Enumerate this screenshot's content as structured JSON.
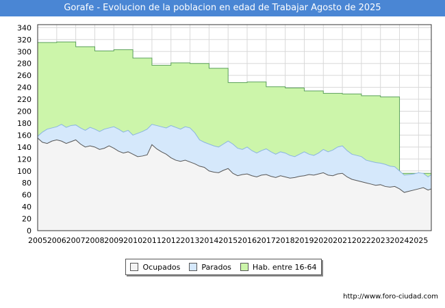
{
  "chart_data": {
    "type": "area",
    "title": "Gorafe - Evolucion de la poblacion en edad de Trabajar Agosto de 2025",
    "xlabel": "",
    "ylabel": "",
    "x_ticks": [
      "2005",
      "2006",
      "2007",
      "2008",
      "2009",
      "2010",
      "2011",
      "2012",
      "2013",
      "2014",
      "2015",
      "2016",
      "2017",
      "2018",
      "2019",
      "2020",
      "2021",
      "2022",
      "2023",
      "2024",
      "2025"
    ],
    "y_ticks": [
      0,
      20,
      40,
      60,
      80,
      100,
      120,
      140,
      160,
      180,
      200,
      220,
      240,
      260,
      280,
      300,
      320,
      340
    ],
    "xlim": [
      2005.0,
      2025.67
    ],
    "ylim": [
      0,
      345
    ],
    "grid": true,
    "legend_position": "bottom-center",
    "source": "http://www.foro-ciudad.com",
    "series": [
      {
        "name": "Hab. entre 16-64",
        "color": "#ccf5aa",
        "line_color": "#5aa05a",
        "step": true,
        "points": [
          [
            2005.0,
            315
          ],
          [
            2006.0,
            316
          ],
          [
            2007.0,
            308
          ],
          [
            2008.0,
            301
          ],
          [
            2009.0,
            303
          ],
          [
            2010.0,
            289
          ],
          [
            2011.0,
            277
          ],
          [
            2012.0,
            281
          ],
          [
            2013.0,
            280
          ],
          [
            2014.0,
            272
          ],
          [
            2015.0,
            248
          ],
          [
            2016.0,
            249
          ],
          [
            2017.0,
            241
          ],
          [
            2018.0,
            239
          ],
          [
            2019.0,
            234
          ],
          [
            2020.0,
            230
          ],
          [
            2021.0,
            229
          ],
          [
            2022.0,
            226
          ],
          [
            2023.0,
            224
          ],
          [
            2023.9,
            224
          ],
          [
            2024.0,
            96
          ],
          [
            2025.67,
            96
          ]
        ]
      },
      {
        "name": "Parados",
        "color": "#d5e8fb",
        "line_color": "#8ab4e0",
        "points": [
          [
            2005.0,
            158
          ],
          [
            2005.25,
            165
          ],
          [
            2005.5,
            170
          ],
          [
            2005.75,
            172
          ],
          [
            2006.0,
            174
          ],
          [
            2006.25,
            178
          ],
          [
            2006.5,
            173
          ],
          [
            2006.75,
            176
          ],
          [
            2007.0,
            177
          ],
          [
            2007.25,
            172
          ],
          [
            2007.5,
            168
          ],
          [
            2007.75,
            173
          ],
          [
            2008.0,
            170
          ],
          [
            2008.25,
            166
          ],
          [
            2008.5,
            170
          ],
          [
            2008.75,
            172
          ],
          [
            2009.0,
            174
          ],
          [
            2009.25,
            170
          ],
          [
            2009.5,
            165
          ],
          [
            2009.75,
            168
          ],
          [
            2010.0,
            160
          ],
          [
            2010.25,
            163
          ],
          [
            2010.5,
            166
          ],
          [
            2010.75,
            170
          ],
          [
            2011.0,
            178
          ],
          [
            2011.25,
            176
          ],
          [
            2011.5,
            174
          ],
          [
            2011.75,
            172
          ],
          [
            2012.0,
            176
          ],
          [
            2012.25,
            173
          ],
          [
            2012.5,
            170
          ],
          [
            2012.75,
            174
          ],
          [
            2013.0,
            172
          ],
          [
            2013.25,
            164
          ],
          [
            2013.5,
            152
          ],
          [
            2013.75,
            148
          ],
          [
            2014.0,
            145
          ],
          [
            2014.25,
            142
          ],
          [
            2014.5,
            140
          ],
          [
            2014.75,
            145
          ],
          [
            2015.0,
            150
          ],
          [
            2015.25,
            145
          ],
          [
            2015.5,
            138
          ],
          [
            2015.75,
            136
          ],
          [
            2016.0,
            140
          ],
          [
            2016.25,
            134
          ],
          [
            2016.5,
            130
          ],
          [
            2016.75,
            134
          ],
          [
            2017.0,
            137
          ],
          [
            2017.25,
            132
          ],
          [
            2017.5,
            128
          ],
          [
            2017.75,
            132
          ],
          [
            2018.0,
            130
          ],
          [
            2018.25,
            126
          ],
          [
            2018.5,
            124
          ],
          [
            2018.75,
            128
          ],
          [
            2019.0,
            132
          ],
          [
            2019.25,
            128
          ],
          [
            2019.5,
            126
          ],
          [
            2019.75,
            130
          ],
          [
            2020.0,
            136
          ],
          [
            2020.25,
            132
          ],
          [
            2020.5,
            135
          ],
          [
            2020.75,
            140
          ],
          [
            2021.0,
            142
          ],
          [
            2021.25,
            134
          ],
          [
            2021.5,
            128
          ],
          [
            2021.75,
            126
          ],
          [
            2022.0,
            124
          ],
          [
            2022.25,
            118
          ],
          [
            2022.5,
            116
          ],
          [
            2022.75,
            114
          ],
          [
            2023.0,
            113
          ],
          [
            2023.25,
            111
          ],
          [
            2023.5,
            108
          ],
          [
            2023.75,
            107
          ],
          [
            2024.0,
            100
          ],
          [
            2024.25,
            93
          ],
          [
            2024.5,
            94
          ],
          [
            2024.75,
            95
          ],
          [
            2025.0,
            97
          ],
          [
            2025.25,
            96
          ],
          [
            2025.5,
            90
          ],
          [
            2025.67,
            94
          ]
        ]
      },
      {
        "name": "Ocupados",
        "color": "#f4f4f4",
        "line_color": "#555555",
        "points": [
          [
            2005.0,
            155
          ],
          [
            2005.25,
            148
          ],
          [
            2005.5,
            146
          ],
          [
            2005.75,
            150
          ],
          [
            2006.0,
            152
          ],
          [
            2006.25,
            150
          ],
          [
            2006.5,
            146
          ],
          [
            2006.75,
            149
          ],
          [
            2007.0,
            152
          ],
          [
            2007.25,
            145
          ],
          [
            2007.5,
            140
          ],
          [
            2007.75,
            142
          ],
          [
            2008.0,
            140
          ],
          [
            2008.25,
            136
          ],
          [
            2008.5,
            138
          ],
          [
            2008.75,
            142
          ],
          [
            2009.0,
            138
          ],
          [
            2009.25,
            133
          ],
          [
            2009.5,
            130
          ],
          [
            2009.75,
            132
          ],
          [
            2010.0,
            128
          ],
          [
            2010.25,
            124
          ],
          [
            2010.5,
            125
          ],
          [
            2010.75,
            127
          ],
          [
            2011.0,
            144
          ],
          [
            2011.25,
            137
          ],
          [
            2011.5,
            132
          ],
          [
            2011.75,
            128
          ],
          [
            2012.0,
            122
          ],
          [
            2012.25,
            118
          ],
          [
            2012.5,
            116
          ],
          [
            2012.75,
            118
          ],
          [
            2013.0,
            115
          ],
          [
            2013.25,
            112
          ],
          [
            2013.5,
            108
          ],
          [
            2013.75,
            106
          ],
          [
            2014.0,
            100
          ],
          [
            2014.25,
            98
          ],
          [
            2014.5,
            97
          ],
          [
            2014.75,
            101
          ],
          [
            2015.0,
            104
          ],
          [
            2015.25,
            96
          ],
          [
            2015.5,
            92
          ],
          [
            2015.75,
            94
          ],
          [
            2016.0,
            95
          ],
          [
            2016.25,
            92
          ],
          [
            2016.5,
            90
          ],
          [
            2016.75,
            93
          ],
          [
            2017.0,
            94
          ],
          [
            2017.25,
            91
          ],
          [
            2017.5,
            89
          ],
          [
            2017.75,
            92
          ],
          [
            2018.0,
            90
          ],
          [
            2018.25,
            88
          ],
          [
            2018.5,
            89
          ],
          [
            2018.75,
            91
          ],
          [
            2019.0,
            92
          ],
          [
            2019.25,
            94
          ],
          [
            2019.5,
            93
          ],
          [
            2019.75,
            95
          ],
          [
            2020.0,
            97
          ],
          [
            2020.25,
            93
          ],
          [
            2020.5,
            92
          ],
          [
            2020.75,
            95
          ],
          [
            2021.0,
            96
          ],
          [
            2021.25,
            90
          ],
          [
            2021.5,
            86
          ],
          [
            2021.75,
            84
          ],
          [
            2022.0,
            82
          ],
          [
            2022.25,
            80
          ],
          [
            2022.5,
            78
          ],
          [
            2022.75,
            76
          ],
          [
            2023.0,
            77
          ],
          [
            2023.25,
            74
          ],
          [
            2023.5,
            73
          ],
          [
            2023.75,
            74
          ],
          [
            2024.0,
            70
          ],
          [
            2024.25,
            64
          ],
          [
            2024.5,
            66
          ],
          [
            2024.75,
            68
          ],
          [
            2025.0,
            70
          ],
          [
            2025.25,
            72
          ],
          [
            2025.5,
            68
          ],
          [
            2025.67,
            70
          ]
        ]
      }
    ]
  }
}
